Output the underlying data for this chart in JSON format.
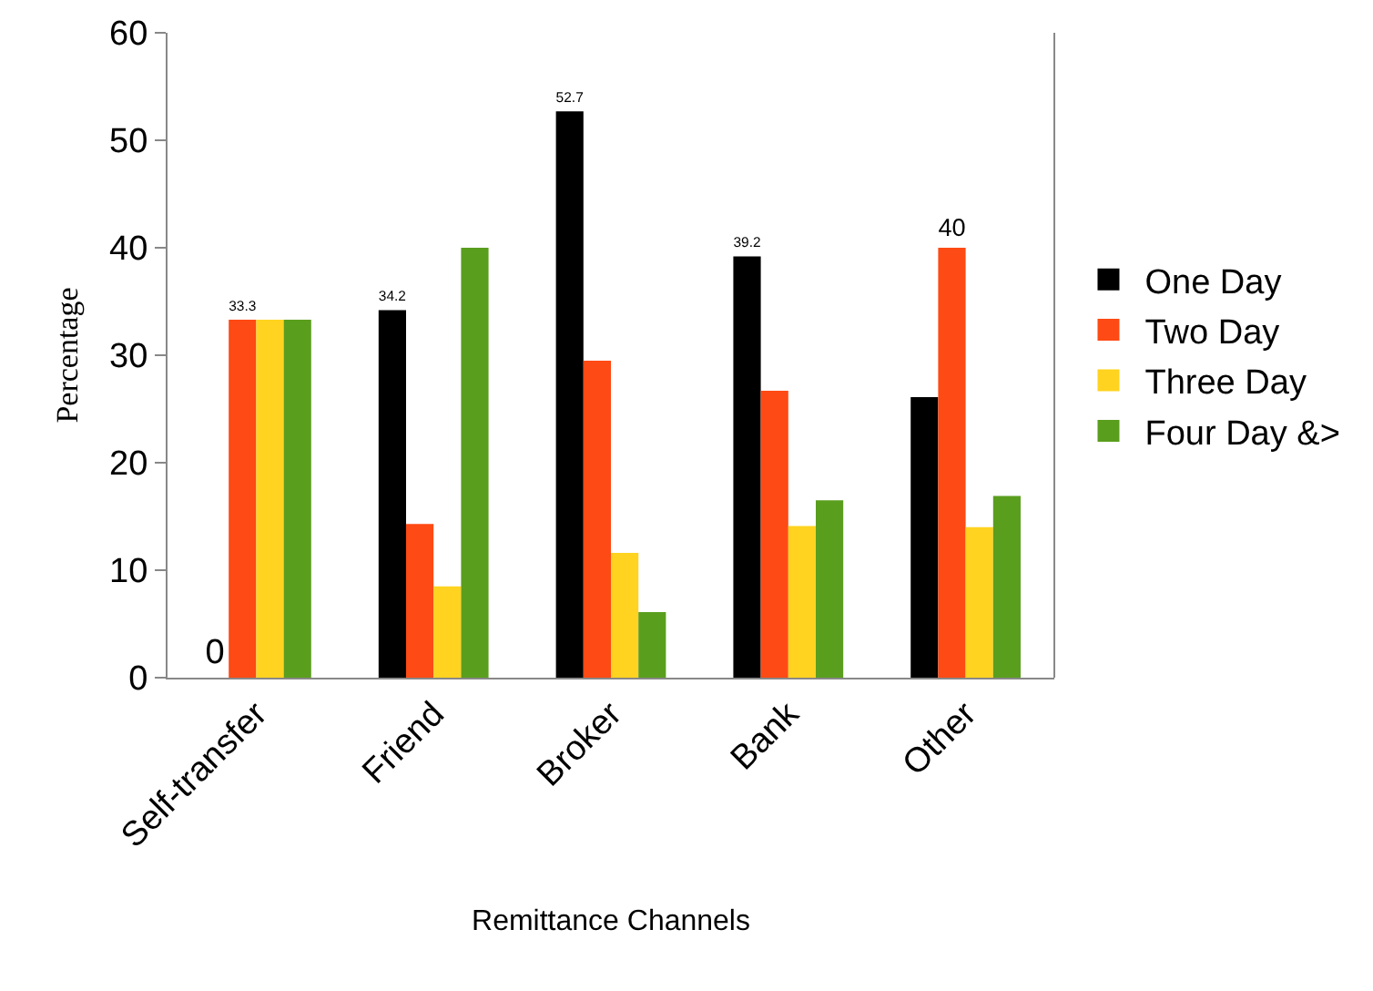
{
  "chart_data": {
    "type": "bar",
    "xlabel": "Remittance Channels",
    "ylabel": "Percentage",
    "categories": [
      "Self-transfer",
      "Friend",
      "Broker",
      "Bank",
      "Other"
    ],
    "series": [
      {
        "name": "One Day",
        "color": "#000000",
        "values": [
          0,
          34.2,
          52.7,
          39.2,
          26.1
        ],
        "value_labels": [
          "0",
          "34.2",
          "52.7",
          "39.2",
          null
        ]
      },
      {
        "name": "Two Day",
        "color": "#fe4a14",
        "values": [
          33.3,
          14.3,
          29.5,
          26.7,
          40
        ],
        "value_labels": [
          "33.3",
          null,
          null,
          null,
          "40"
        ]
      },
      {
        "name": "Three Day",
        "color": "#ffd320",
        "values": [
          33.3,
          8.5,
          11.6,
          14.1,
          14
        ],
        "value_labels": [
          null,
          null,
          null,
          null,
          null
        ]
      },
      {
        "name": "Four Day &>",
        "color": "#5a9e1e",
        "values": [
          33.3,
          40,
          6.1,
          16.5,
          16.9
        ],
        "value_labels": [
          null,
          null,
          null,
          null,
          null
        ]
      }
    ],
    "ylim": [
      0,
      60
    ],
    "yticks": [
      0,
      10,
      20,
      30,
      40,
      50,
      60
    ],
    "grid": false,
    "legend": "right"
  }
}
